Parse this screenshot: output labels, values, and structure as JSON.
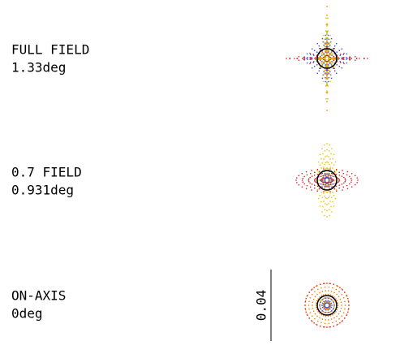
{
  "fields": [
    {
      "name": "FULL FIELD",
      "angle": "1.33deg"
    },
    {
      "name": "0.7 FIELD",
      "angle": "0.931deg"
    },
    {
      "name": "ON-AXIS",
      "angle": "0deg"
    }
  ],
  "scale_bar": {
    "label": "0.04"
  }
}
